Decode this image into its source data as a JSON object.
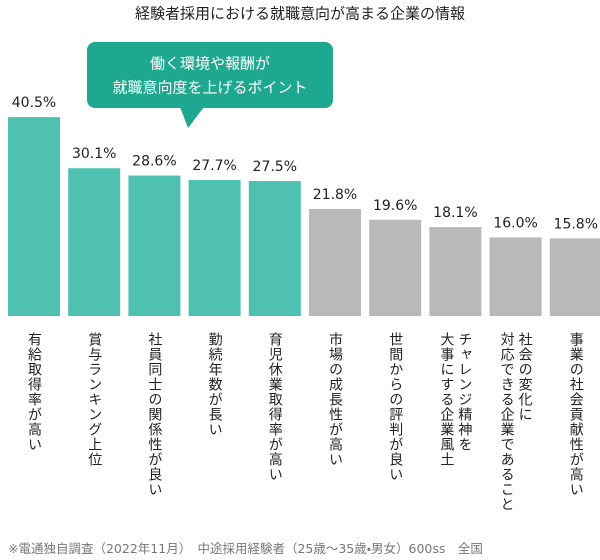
{
  "chart_data": {
    "type": "bar",
    "title": "経験者採用における就職意向が高まる企業の情報",
    "annotation": [
      "働く環境や報酬が",
      "就職意向度を上げるポイント"
    ],
    "categories": [
      "有給取得率が高い",
      "賞与ランキング上位",
      "社員同士の関係性が良い",
      "勤続年数が長い",
      "育児休業取得率が高い",
      "市場の成長性が高い",
      "世間からの評判が良い",
      "チャレンジ精神を\n大事にする企業風土",
      "社会の変化に\n対応できる企業であること",
      "事業の社会貢献性が高い"
    ],
    "values": [
      40.5,
      30.1,
      28.6,
      27.7,
      27.5,
      21.8,
      19.6,
      18.1,
      16.0,
      15.8
    ],
    "value_labels": [
      "40.5%",
      "30.1%",
      "28.6%",
      "27.7%",
      "27.5%",
      "21.8%",
      "19.6%",
      "18.1%",
      "16.0%",
      "15.8%"
    ],
    "colors": [
      "#4fc1b0",
      "#4fc1b0",
      "#4fc1b0",
      "#4fc1b0",
      "#4fc1b0",
      "#b9b9b9",
      "#b9b9b9",
      "#b9b9b9",
      "#b9b9b9",
      "#b9b9b9"
    ],
    "footnote": "※電通独自調査（2022年11月）　中途採用経験者（25歳～35歳・男女）600ss　全国"
  }
}
